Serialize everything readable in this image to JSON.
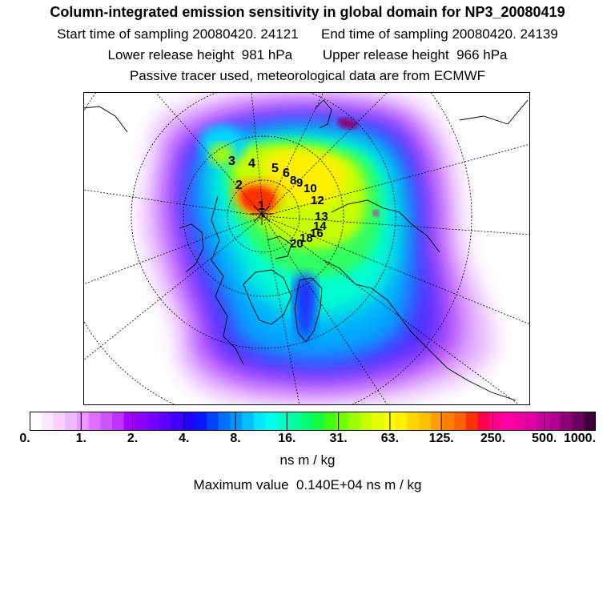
{
  "header": {
    "title": "Column-integrated emission sensitivity in global domain for NP3_20080419",
    "line1": "Start time of sampling 20080420. 24121      End time of sampling 20080420. 24139",
    "line2": "Lower release height  981 hPa        Upper release height  966 hPa",
    "line3": "Passive tracer used, meteorological data are from ECMWF"
  },
  "map": {
    "projection": "north polar stereographic",
    "trajectory_labels": [
      "1",
      "2",
      "3",
      "4",
      "5",
      "6",
      "8",
      "9",
      "10",
      "12",
      "13",
      "14",
      "16",
      "18",
      "20"
    ]
  },
  "colorbar": {
    "colors": [
      "#ffffff",
      "#fbe6ff",
      "#f6d0ff",
      "#f0b8ff",
      "#e898ff",
      "#e070ff",
      "#cc55ff",
      "#bb33ff",
      "#a300ff",
      "#8a00ff",
      "#7400ff",
      "#5a00ff",
      "#3f00ff",
      "#2200ff",
      "#0a14ff",
      "#0040ff",
      "#0070ff",
      "#0098ff",
      "#00c0ff",
      "#00e8ff",
      "#00ffe8",
      "#00ffc8",
      "#00ffa0",
      "#00ff70",
      "#10ff40",
      "#40ff10",
      "#70ff00",
      "#9cff00",
      "#c4ff00",
      "#e4ff00",
      "#f8ff00",
      "#fff000",
      "#ffd800",
      "#ffc000",
      "#ffa000",
      "#ff8000",
      "#ff6000",
      "#ff3000",
      "#ff0050",
      "#ff0090",
      "#ff00a0",
      "#f000a0",
      "#e000a8",
      "#c800a0",
      "#b00090",
      "#8c0078",
      "#6a005c",
      "#40003a"
    ],
    "tick_labels": [
      "0.",
      "1.",
      "2.",
      "4.",
      "8.",
      "16.",
      "31.",
      "63.",
      "125.",
      "250.",
      "500.",
      "1000."
    ]
  },
  "units_label": "ns m / kg",
  "max_value_text": "Maximum value  0.140E+04 ns m / kg"
}
